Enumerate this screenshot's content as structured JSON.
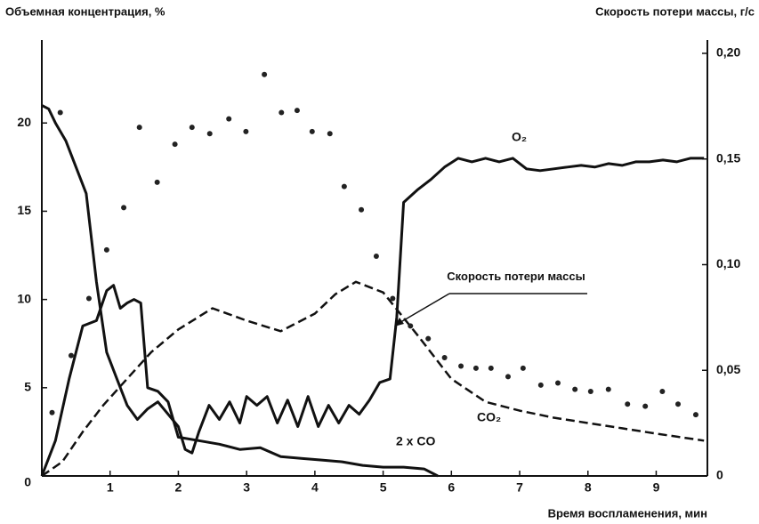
{
  "chart_data": {
    "type": "line",
    "ylabel": "Объемная концентрация, %",
    "y2label": "Скорость потери массы, г/с",
    "xlabel": "Время воспламенения, мин",
    "xlim": [
      0,
      9.75
    ],
    "xticks": [
      1,
      2,
      3,
      4,
      5,
      6,
      7,
      8,
      9
    ],
    "ylim": [
      0,
      24.7
    ],
    "yticks": [
      0,
      5,
      10,
      15,
      20
    ],
    "y2lim": [
      0,
      0.2063
    ],
    "y2ticks": [
      0,
      {
        "value": 0.05,
        "label": "0,05"
      },
      {
        "value": 0.1,
        "label": "0,10"
      },
      {
        "value": 0.15,
        "label": "0,15"
      },
      {
        "value": 0.2,
        "label": "0,20"
      }
    ],
    "grid": false,
    "series": [
      {
        "name": "O₂",
        "color": "#111111",
        "style": "solid",
        "x": [
          0,
          0.1,
          0.2,
          0.35,
          0.5,
          0.65,
          0.8,
          0.95,
          1.1,
          1.25,
          1.4,
          1.55,
          1.7,
          1.85,
          2.0,
          2.1,
          2.2,
          2.3,
          2.45,
          2.6,
          2.75,
          2.9,
          3.0,
          3.15,
          3.3,
          3.45,
          3.6,
          3.75,
          3.9,
          4.05,
          4.2,
          4.35,
          4.5,
          4.65,
          4.8,
          4.95,
          5.1,
          5.2,
          5.3,
          5.5,
          5.7,
          5.9,
          6.1,
          6.3,
          6.5,
          6.7,
          6.9,
          7.1,
          7.3,
          7.5,
          7.7,
          7.9,
          8.1,
          8.3,
          8.5,
          8.7,
          8.9,
          9.1,
          9.3,
          9.5,
          9.7
        ],
        "values": [
          21,
          20.8,
          20,
          19,
          17.5,
          16,
          11,
          7,
          5.5,
          4,
          3.2,
          3.8,
          4.2,
          3.5,
          2.8,
          1.5,
          1.3,
          2.5,
          4,
          3.2,
          4.2,
          3,
          4.5,
          4,
          4.5,
          3,
          4.3,
          2.8,
          4.5,
          2.8,
          4,
          3,
          4,
          3.5,
          4.3,
          5.3,
          5.5,
          9,
          15.5,
          16.2,
          16.8,
          17.5,
          18,
          17.8,
          18,
          17.8,
          18,
          17.4,
          17.3,
          17.4,
          17.5,
          17.6,
          17.5,
          17.7,
          17.6,
          17.8,
          17.8,
          17.9,
          17.8,
          18,
          18
        ]
      },
      {
        "name": "2 x CO",
        "color": "#111111",
        "style": "solid",
        "x": [
          0,
          0.2,
          0.4,
          0.6,
          0.8,
          0.95,
          1.05,
          1.15,
          1.25,
          1.35,
          1.45,
          1.55,
          1.7,
          1.85,
          2.0,
          2.3,
          2.6,
          2.9,
          3.2,
          3.5,
          3.8,
          4.1,
          4.4,
          4.7,
          5.0,
          5.3,
          5.6,
          5.8
        ],
        "values": [
          0,
          2,
          5.5,
          8.5,
          8.8,
          10.5,
          10.8,
          9.5,
          9.8,
          10,
          9.8,
          5,
          4.8,
          4.2,
          2.2,
          2,
          1.8,
          1.5,
          1.6,
          1.1,
          1,
          0.9,
          0.8,
          0.6,
          0.5,
          0.5,
          0.4,
          0
        ]
      },
      {
        "name": "CO₂",
        "color": "#111111",
        "style": "dashed",
        "x": [
          0,
          0.3,
          0.6,
          0.9,
          1.2,
          1.6,
          2.0,
          2.5,
          3.0,
          3.5,
          4.0,
          4.3,
          4.6,
          5.0,
          5.5,
          6.0,
          6.5,
          7.0,
          7.5,
          8.0,
          8.5,
          9.0,
          9.7
        ],
        "values": [
          0,
          0.8,
          2.5,
          4,
          5.3,
          7,
          8.3,
          9.5,
          8.8,
          8.2,
          9.2,
          10.3,
          11,
          10.4,
          8,
          5.5,
          4.2,
          3.7,
          3.3,
          3,
          2.7,
          2.4,
          2
        ]
      },
      {
        "name": "Скорость потери массы",
        "color": "#222222",
        "style": "dots",
        "axis": "y2",
        "x": [
          0.15,
          0.27,
          0.43,
          0.69,
          0.95,
          1.2,
          1.43,
          1.69,
          1.95,
          2.2,
          2.46,
          2.74,
          2.99,
          3.26,
          3.51,
          3.74,
          3.96,
          4.22,
          4.43,
          4.68,
          4.9,
          5.14,
          5.4,
          5.66,
          5.9,
          6.14,
          6.36,
          6.58,
          6.83,
          7.05,
          7.31,
          7.56,
          7.81,
          8.04,
          8.3,
          8.58,
          8.84,
          9.09,
          9.32,
          9.58
        ],
        "values": [
          0.03,
          0.172,
          0.057,
          0.084,
          0.107,
          0.127,
          0.165,
          0.139,
          0.157,
          0.165,
          0.162,
          0.169,
          0.163,
          0.19,
          0.172,
          0.173,
          0.163,
          0.162,
          0.137,
          0.126,
          0.104,
          0.084,
          0.071,
          0.065,
          0.056,
          0.052,
          0.051,
          0.051,
          0.047,
          0.051,
          0.043,
          0.044,
          0.041,
          0.04,
          0.041,
          0.034,
          0.033,
          0.04,
          0.034,
          0.029
        ]
      }
    ]
  }
}
